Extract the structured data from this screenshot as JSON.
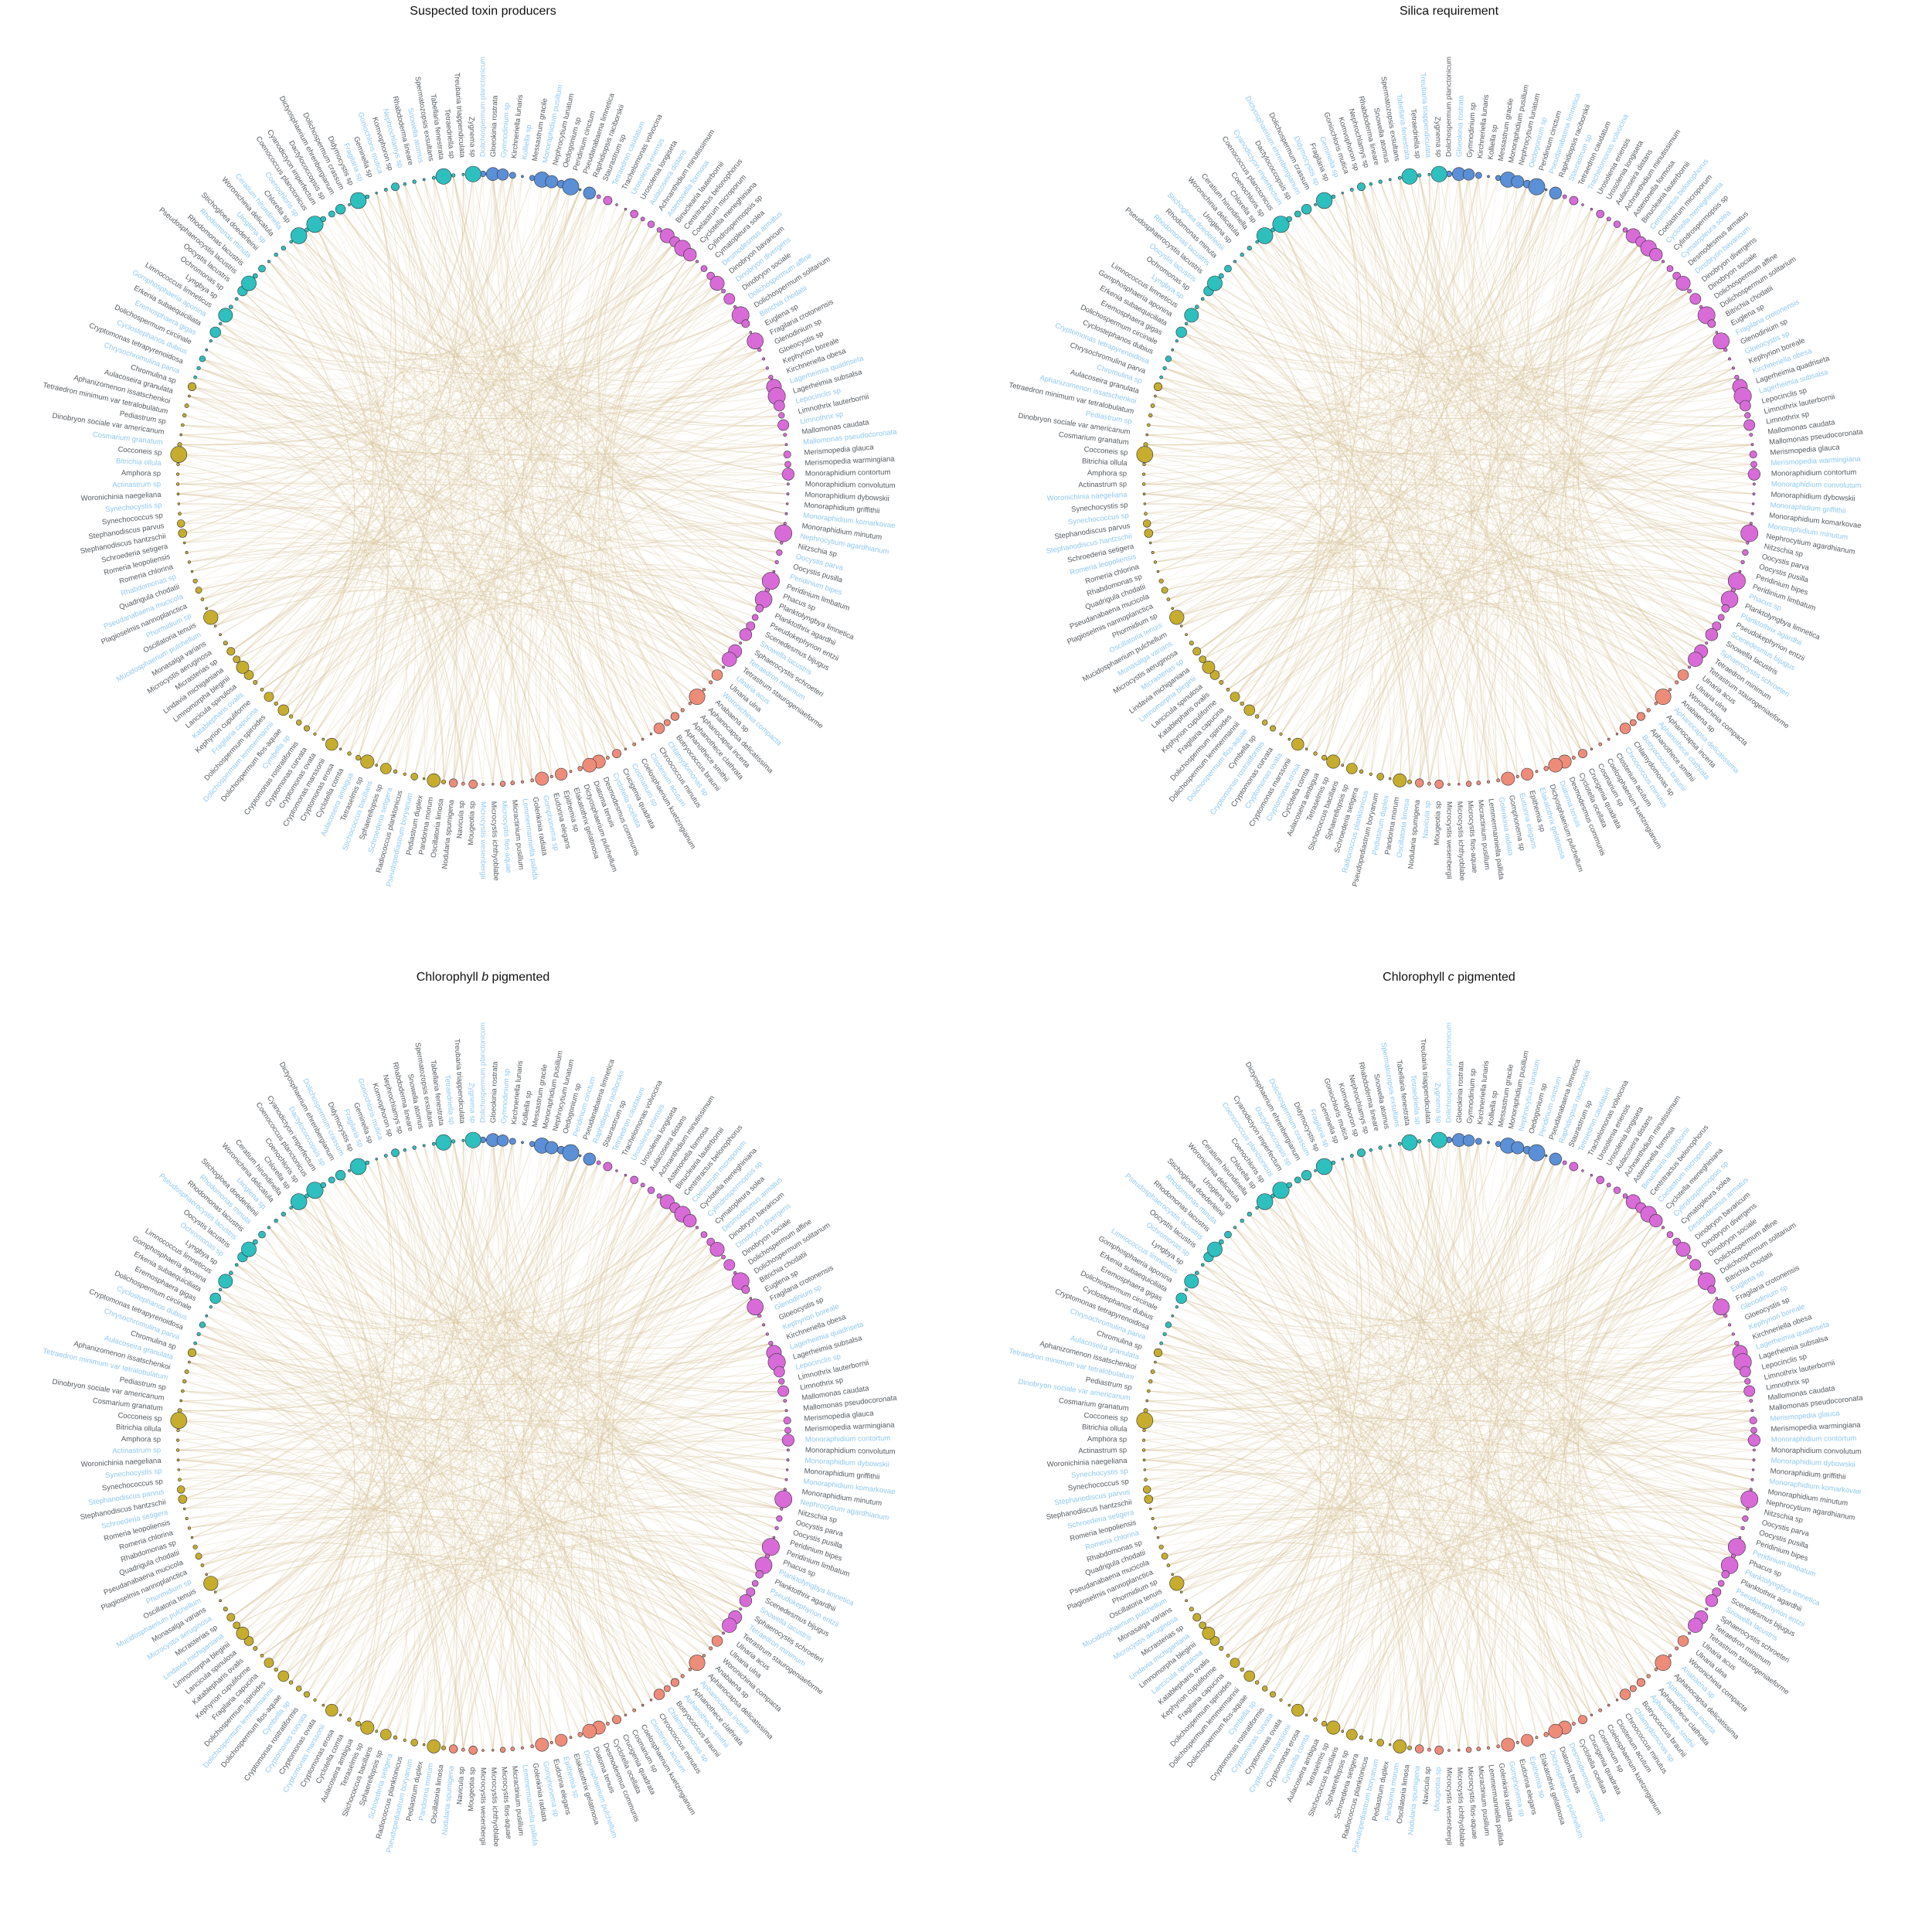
{
  "panels": [
    {
      "title_pre": "Suspected toxin producers",
      "title_em": "",
      "title_post": "",
      "offset": 0
    },
    {
      "title_pre": "Silica requirement",
      "title_em": "",
      "title_post": "",
      "offset": 7
    },
    {
      "title_pre": "Chlorophyll ",
      "title_em": "b",
      "title_post": " pigmented",
      "offset": 3
    },
    {
      "title_pre": "Chlorophyll ",
      "title_em": "c",
      "title_post": " pigmented",
      "offset": 11
    }
  ],
  "colors": {
    "label_default": "#555a5f",
    "label_highlight": "#8ec8f2",
    "edge": "#d8c49a",
    "groups": [
      "#5b8fd6",
      "#d86bd8",
      "#ee8c7a",
      "#c6ad2e",
      "#2ebfbf"
    ]
  },
  "taxa": [
    "Dolichospermum planctonicum",
    "Gloeokinia rostrata",
    "Gymnodinium sp",
    "Kirchneriella lunaris",
    "Kolliella sp",
    "Messastrum gracile",
    "Monoraphidium pusillum",
    "Nephrocytium lunatum",
    "Oedogonium sp",
    "Peridinium cinctum",
    "Pseudanabaena limnetica",
    "Raphidiopsis raciborskii",
    "Staurastrum sp",
    "Tetraedron caudatum",
    "Trachelomonas volvocina",
    "Urosolenia eriensis",
    "Urosolenia longiseta",
    "Aulacoseira distans",
    "Achnanthidium minutissimum",
    "Asterionella formosa",
    "Binuclearia lauterbornii",
    "Centritractus belonophorus",
    "Coelastrum microporum",
    "Cyclotella meneghiniana",
    "Cylindrospermopsis sp",
    "Cymatopleura solea",
    "Desmodesmus armatus",
    "Dinobryon bavaricum",
    "Dinobryon divergens",
    "Dinobryon sociale",
    "Dolichospermum affine",
    "Dolichospermum solitarium",
    "Bitrichia chodatii",
    "Euglena sp",
    "Fragilaria crotonensis",
    "Glenodinium sp",
    "Gloeocystis sp",
    "Kephyrion boreale",
    "Kirchneriella obesa",
    "Lagerheimia quadriseta",
    "Lagerheimia subsalsa",
    "Lepocinclis sp",
    "Limnothrix lauterbornii",
    "Limnothrix sp",
    "Mallomonas caudata",
    "Mallomonas pseudocoronata",
    "Merismopedia glauca",
    "Merismopedia warmingiana",
    "Monoraphidium contortum",
    "Monoraphidium convolutum",
    "Monoraphidium dybowskii",
    "Monoraphidium griffithii",
    "Monoraphidium komarkovae",
    "Monoraphidium minutum",
    "Nephrocytium agardhianum",
    "Nitzschia sp",
    "Oocystis parva",
    "Oocystis pusilla",
    "Peridinium bipes",
    "Peridinium limbatum",
    "Phacus sp",
    "Planktolyngbya limnetica",
    "Planktothrix agardhii",
    "Pseudokephyrion entzii",
    "Scenedesmus bijugus",
    "Snowella lacustris",
    "Sphaerocystis schroeteri",
    "Tetraedron minimum",
    "Tetrastrum staurogeniaeforme",
    "Ulnaria acus",
    "Ulnaria ulna",
    "Woronichinia compacta",
    "Anabaena sp",
    "Aphanocapsa delicatissima",
    "Aphanocapsa incerta",
    "Aphanothece clathrata",
    "Aphanothece smithii",
    "Botryococcus braunii",
    "Chlamydomonas sp",
    "Chroococcus minutus",
    "Closterium acutum",
    "Coelosphaerium kuetzingianum",
    "Cosmarium sp",
    "Crucigenia quadrata",
    "Cyclotella ocellata",
    "Desmodesmus communis",
    "Diatoma tenuis",
    "Dictyosphaerium pulchellum",
    "Elakatothrix gelatinosa",
    "Epithemia sp",
    "Eudorina elegans",
    "Gomphonema sp",
    "Golenkinia radiata",
    "Lemmermanniella pallida",
    "Micractinium pusillum",
    "Microcystis flos-aquae",
    "Microcystis ichthyoblabe",
    "Microcystis wesenbergii",
    "Mougeotia sp",
    "Navicula sp",
    "Nodularia spumigena",
    "Oscillatoria limosa",
    "Pandorina morum",
    "Pediastrum duplex",
    "Pseudopediastrum boryanum",
    "Radiococcus planktonicus",
    "Schroederia setigera",
    "Sphaerellopsis sp",
    "Stichococcus bacillaris",
    "Tetraselmis sp",
    "Aulacoseira ambigua",
    "Cyclotella comta",
    "Cryptomonas erosa",
    "Cryptomonas marssonii",
    "Cryptomonas ovata",
    "Cryptomonas curvata",
    "Cryptomonas rostratiformis",
    "Cymbella sp",
    "Dolichospermum flos-aquae",
    "Dolichospermum lemmermannii",
    "Dolichospermum spiroides",
    "Fragilaria capucina",
    "Kephyrion cupuliforme",
    "Katablepharis ovalis",
    "Lancicula spinulosa",
    "Limnomorpha bleginii",
    "Lindavia michiganiana",
    "Micrasterias sp",
    "Microcystis aeruginosa",
    "Monasalga varians",
    "Mucidosphaerium pulchellum",
    "Oscillatoria tenuis",
    "Phormidium sp",
    "Plagioselmis nannoplanctica",
    "Pseudanabaena mucicola",
    "Quadrigula chodatii",
    "Rhabdomonas sp",
    "Romeria chlorina",
    "Romeria leopoliensis",
    "Schroederia setigera",
    "Stephanodiscus hantzschii",
    "Stephanodiscus parvus",
    "Synechococcus sp",
    "Synechocystis sp",
    "Woronichinia naegeliana",
    "Actinastrum sp",
    "Amphora sp",
    "Bitrichia ollula",
    "Cocconeis sp",
    "Cosmarium granatum",
    "Dinobryon sociale var americanum",
    "Pediastrum sp",
    "Tetraedron minimum var tetralobulatum",
    "Aphanizomenon issatschenkoi",
    "Aulacoseira granulata",
    "Chromulina sp",
    "Chrysochromulina parva",
    "Cryptomonas tetrapyrenoidosa",
    "Cyclostephanos dubius",
    "Dolichospermum circinale",
    "Eremosphaera gigas",
    "Erkenia subaequiciliata",
    "Gomphosphaeria aponina",
    "Limnococcus limneticus",
    "Lyngbya sp",
    "Ochromonas sp",
    "Oocystis lacustris",
    "Pseudosphaerocystis lacustris",
    "Rhodomonas lacustris",
    "Rhodomonas minuta",
    "Stichogloea doederleinii",
    "Uroglena sp",
    "Woronichinia delicatula",
    "Ceratium hirundinella",
    "Chlorella sp",
    "Coenochloris sp",
    "Coenococcus planctonicus",
    "Cyanodictyon imperfectum",
    "Dactylococcopsis sp",
    "Dictyosphaerium ehrenbergianum",
    "Dolichospermum crassum",
    "Didymocystis sp",
    "Fragilaria sp",
    "Geminella sp",
    "Goniochloris mutica",
    "Komvophoron sp",
    "Nephrochlamys sp",
    "Rhabdoderma lineare",
    "Snowella atomus",
    "Spermatozopsis exsultans",
    "Tabellaria fenestrata",
    "Tetraedriella sp",
    "Treubaria triappendiculata",
    "Zygnema sp"
  ]
}
